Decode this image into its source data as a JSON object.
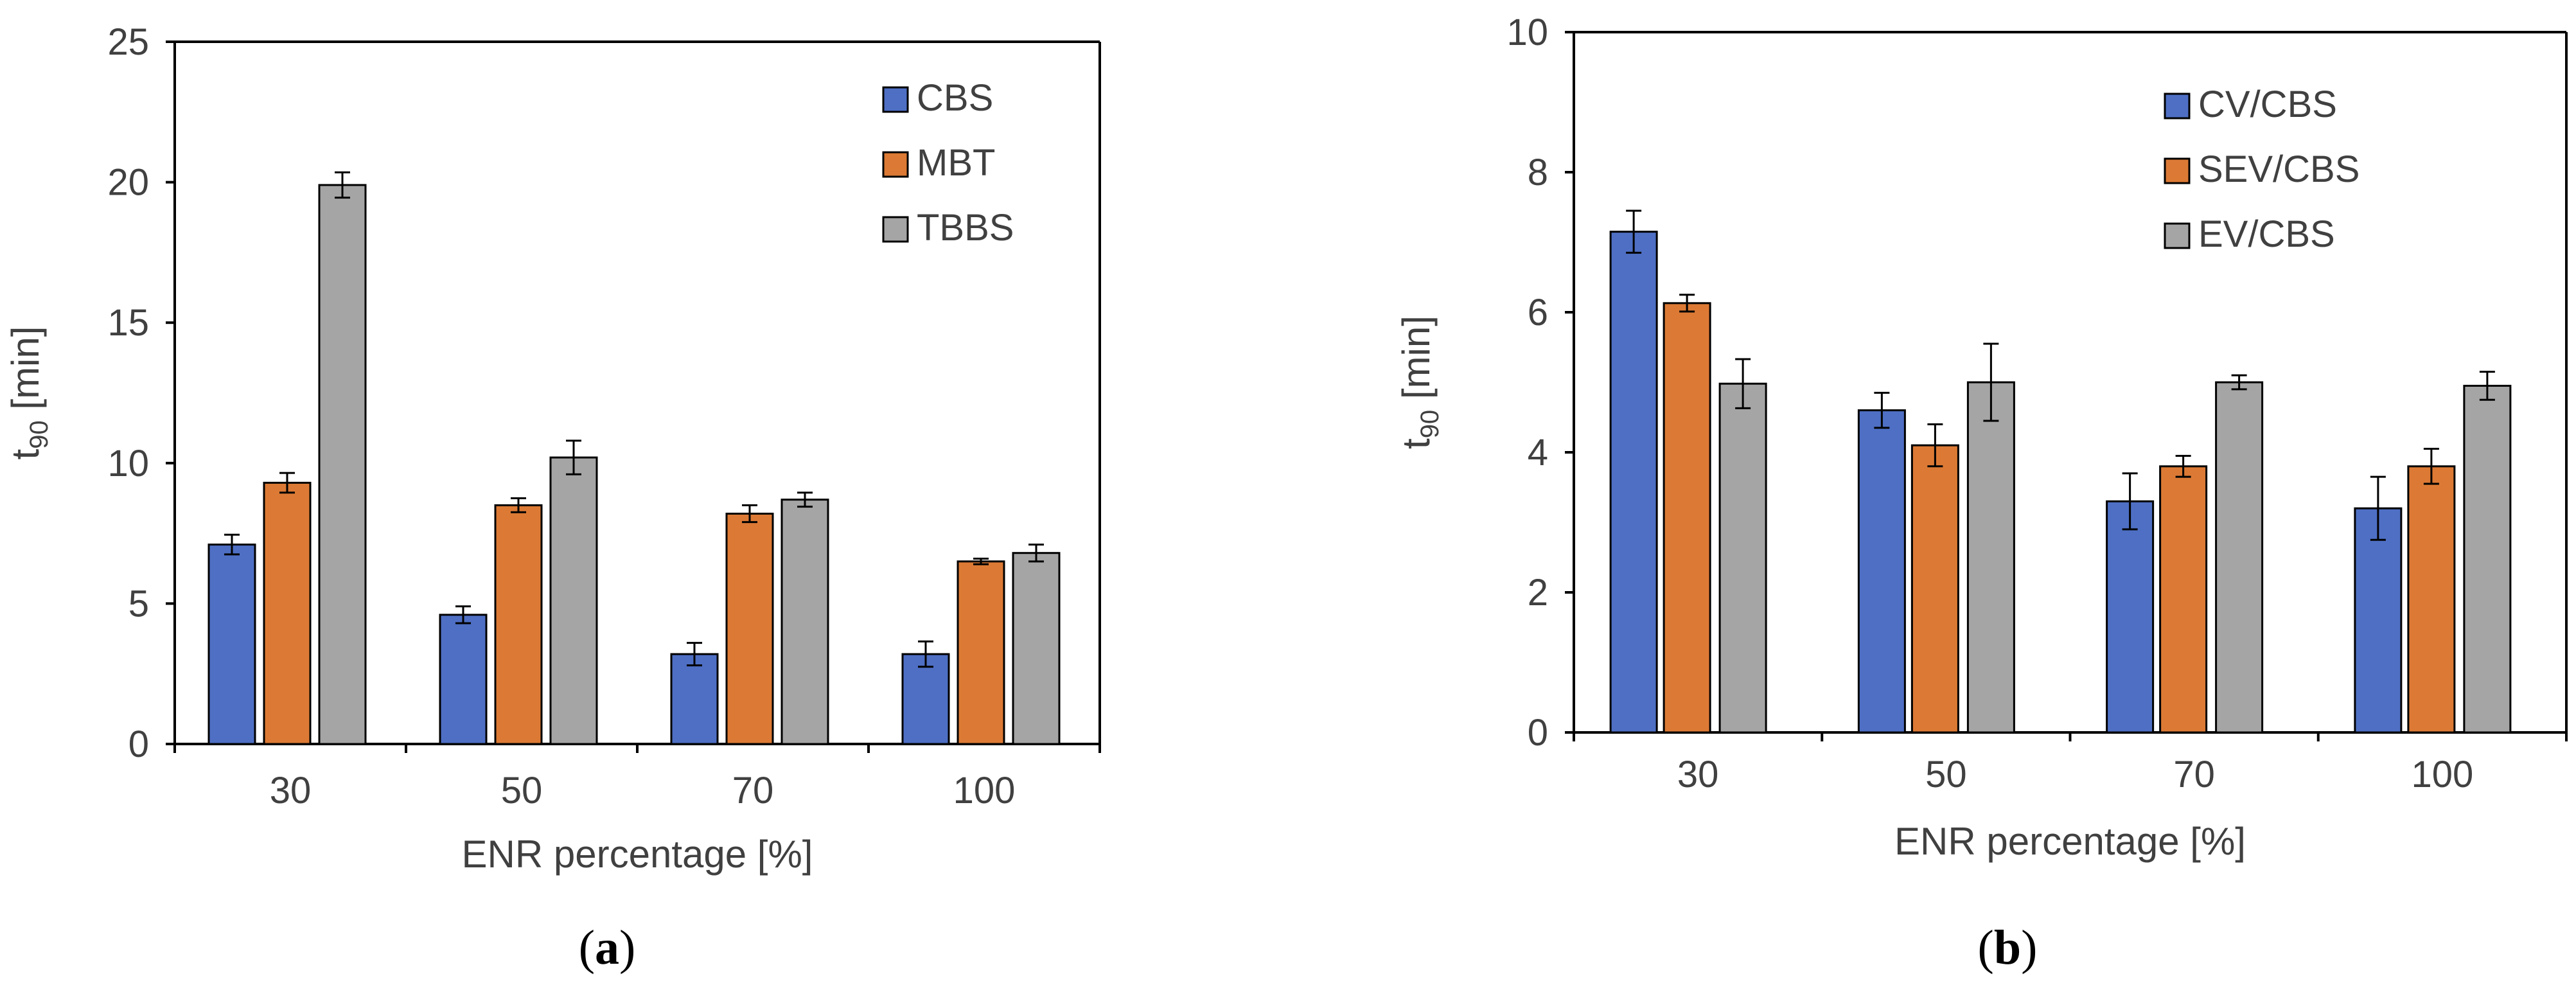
{
  "chart_data": [
    {
      "type": "bar",
      "panel_label": "(a)",
      "panel_letter": "a",
      "title": "",
      "xlabel": "ENR percentage [%]",
      "ylabel_main": "t",
      "ylabel_sub": "90",
      "ylabel_unit": " [min]",
      "ylim": [
        0,
        25
      ],
      "yticks": [
        0,
        5,
        10,
        15,
        20,
        25
      ],
      "grid": false,
      "legend_position": "top-right",
      "categories": [
        "30",
        "50",
        "70",
        "100"
      ],
      "series": [
        {
          "name": "CBS",
          "color": "#4e6fc4",
          "values": [
            7.1,
            4.6,
            3.2,
            3.2
          ],
          "errors": [
            0.35,
            0.3,
            0.4,
            0.45
          ]
        },
        {
          "name": "MBT",
          "color": "#dc7a35",
          "values": [
            9.3,
            8.5,
            8.2,
            6.5
          ],
          "errors": [
            0.35,
            0.25,
            0.3,
            0.1
          ]
        },
        {
          "name": "TBBS",
          "color": "#a5a5a5",
          "values": [
            19.9,
            10.2,
            8.7,
            6.8
          ],
          "errors": [
            0.45,
            0.6,
            0.25,
            0.3
          ]
        }
      ]
    },
    {
      "type": "bar",
      "panel_label": "(b)",
      "panel_letter": "b",
      "title": "",
      "xlabel": "ENR percentage [%]",
      "ylabel_main": "t",
      "ylabel_sub": "90",
      "ylabel_unit": " [min]",
      "ylim": [
        0,
        10
      ],
      "yticks": [
        0,
        2,
        4,
        6,
        8,
        10
      ],
      "grid": false,
      "legend_position": "top-right",
      "categories": [
        "30",
        "50",
        "70",
        "100"
      ],
      "series": [
        {
          "name": "CV/CBS",
          "color": "#4e6fc4",
          "values": [
            7.15,
            4.6,
            3.3,
            3.2
          ],
          "errors": [
            0.3,
            0.25,
            0.4,
            0.45
          ]
        },
        {
          "name": "SEV/CBS",
          "color": "#dc7a35",
          "values": [
            6.13,
            4.1,
            3.8,
            3.8
          ],
          "errors": [
            0.12,
            0.3,
            0.15,
            0.25
          ]
        },
        {
          "name": "EV/CBS",
          "color": "#a5a5a5",
          "values": [
            4.98,
            5.0,
            5.0,
            4.95
          ],
          "errors": [
            0.35,
            0.55,
            0.1,
            0.2
          ]
        }
      ]
    }
  ]
}
